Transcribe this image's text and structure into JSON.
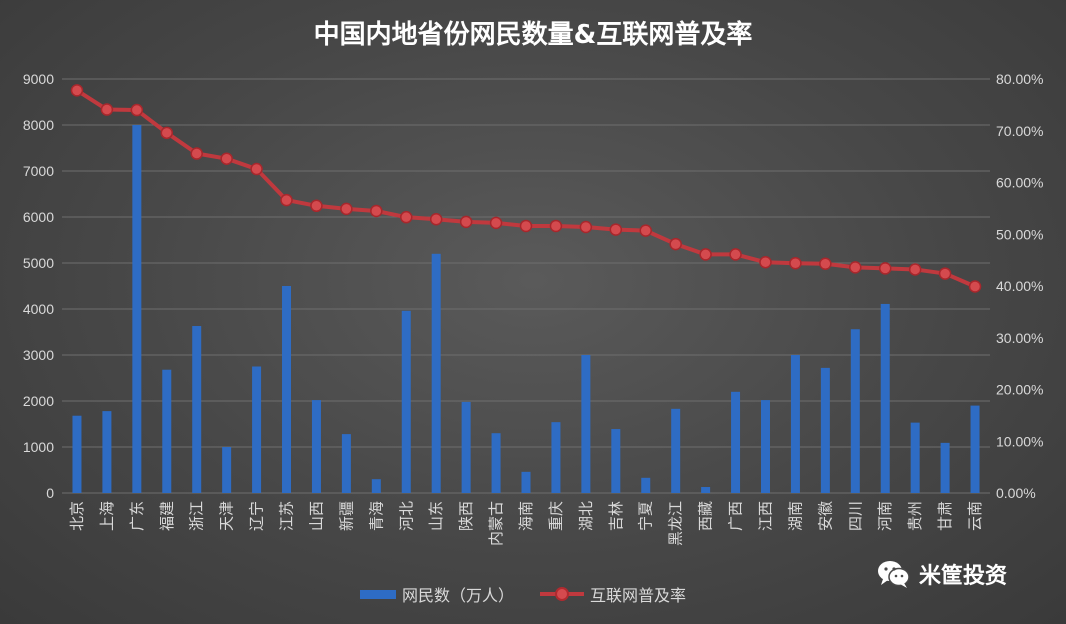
{
  "chart_data": {
    "type": "bar",
    "title": "中国内地省份网民数量&互联网普及率",
    "categories": [
      "北京",
      "上海",
      "广东",
      "福建",
      "浙江",
      "天津",
      "辽宁",
      "江苏",
      "山西",
      "新疆",
      "青海",
      "河北",
      "山东",
      "陕西",
      "内蒙古",
      "海南",
      "重庆",
      "湖北",
      "吉林",
      "宁夏",
      "黑龙江",
      "西藏",
      "广西",
      "江西",
      "湖南",
      "安徽",
      "四川",
      "河南",
      "贵州",
      "甘肃",
      "云南"
    ],
    "series": [
      {
        "name": "网民数（万人）",
        "type": "bar",
        "axis": "left",
        "color": "#2e6cc4",
        "values": [
          1680,
          1780,
          8000,
          2680,
          3630,
          1000,
          2750,
          4500,
          2020,
          1280,
          300,
          3960,
          5200,
          1980,
          1300,
          460,
          1540,
          3000,
          1390,
          330,
          1830,
          130,
          2200,
          2020,
          3000,
          2720,
          3560,
          4110,
          1530,
          1090,
          1900
        ]
      },
      {
        "name": "互联网普及率",
        "type": "line",
        "axis": "right",
        "color": "#c0393e",
        "values": [
          77.8,
          74.1,
          74.0,
          69.6,
          65.6,
          64.6,
          62.6,
          56.6,
          55.5,
          54.9,
          54.5,
          53.3,
          52.9,
          52.4,
          52.2,
          51.6,
          51.6,
          51.4,
          50.9,
          50.7,
          48.1,
          46.1,
          46.1,
          44.6,
          44.4,
          44.3,
          43.6,
          43.4,
          43.2,
          42.4,
          39.9
        ]
      }
    ],
    "ylim_left": [
      0,
      9000
    ],
    "yticks_left": [
      "0",
      "1000",
      "2000",
      "3000",
      "4000",
      "5000",
      "6000",
      "7000",
      "8000",
      "9000"
    ],
    "ylim_right": [
      0,
      80
    ],
    "yticks_right": [
      "0.00%",
      "10.00%",
      "20.00%",
      "30.00%",
      "40.00%",
      "50.00%",
      "60.00%",
      "70.00%",
      "80.00%"
    ],
    "grid": true,
    "legend_position": "bottom"
  },
  "legend": {
    "bar_label": "网民数（万人）",
    "line_label": "互联网普及率"
  },
  "watermark": {
    "text": "米筐投资",
    "icon": "wechat-icon"
  }
}
